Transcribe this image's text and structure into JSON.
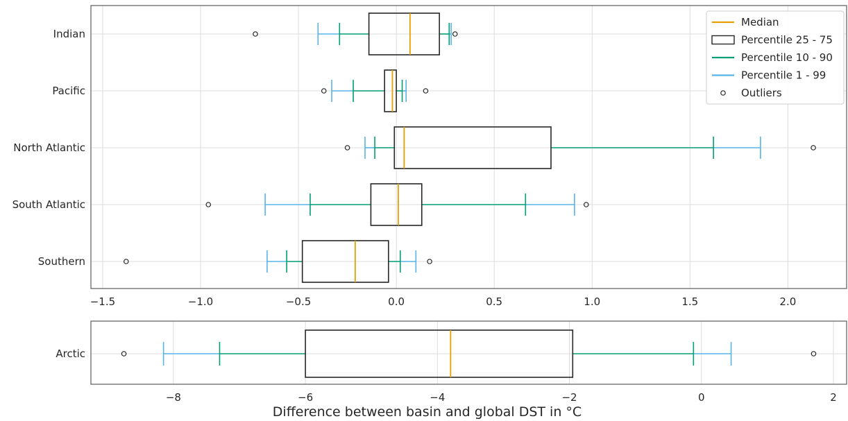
{
  "chart_data": [
    {
      "type": "boxplot",
      "orientation": "horizontal",
      "categories": [
        "Indian",
        "Pacific",
        "North Atlantic",
        "South Atlantic",
        "Southern"
      ],
      "xlim": [
        -1.56,
        2.3
      ],
      "xticks": [
        -1.5,
        -1.0,
        -0.5,
        0.0,
        0.5,
        1.0,
        1.5,
        2.0
      ],
      "xtick_labels": [
        "−1.5",
        "−1.0",
        "−0.5",
        "0.0",
        "0.5",
        "1.0",
        "1.5",
        "2.0"
      ],
      "grid": true,
      "boxes": [
        {
          "name": "Indian",
          "p1": -0.4,
          "p10": -0.29,
          "q1": -0.14,
          "median": 0.07,
          "q3": 0.22,
          "p90": 0.27,
          "p99": 0.28,
          "outliers": [
            -0.72,
            0.3
          ]
        },
        {
          "name": "Pacific",
          "p1": -0.33,
          "p10": -0.22,
          "q1": -0.06,
          "median": -0.02,
          "q3": 0.0,
          "p90": 0.03,
          "p99": 0.05,
          "outliers": [
            -0.37,
            0.15
          ]
        },
        {
          "name": "North Atlantic",
          "p1": -0.16,
          "p10": -0.11,
          "q1": -0.01,
          "median": 0.04,
          "q3": 0.79,
          "p90": 1.62,
          "p99": 1.86,
          "outliers": [
            -0.25,
            2.13
          ]
        },
        {
          "name": "South Atlantic",
          "p1": -0.67,
          "p10": -0.44,
          "q1": -0.13,
          "median": 0.01,
          "q3": 0.13,
          "p90": 0.66,
          "p99": 0.91,
          "outliers": [
            -0.96,
            0.97
          ]
        },
        {
          "name": "Southern",
          "p1": -0.66,
          "p10": -0.56,
          "q1": -0.48,
          "median": -0.21,
          "q3": -0.04,
          "p90": 0.02,
          "p99": 0.1,
          "outliers": [
            -1.38,
            0.17
          ]
        }
      ],
      "legend": {
        "placement": "top-right",
        "entries": [
          {
            "label": "Median",
            "kind": "line",
            "color": "#e69f00"
          },
          {
            "label": "Percentile 25 - 75",
            "kind": "box",
            "color": "#262626"
          },
          {
            "label": "Percentile 10 - 90",
            "kind": "line",
            "color": "#009e73"
          },
          {
            "label": "Percentile 1 - 99",
            "kind": "line",
            "color": "#56b4e9"
          },
          {
            "label": "Outliers",
            "kind": "marker",
            "color": "#262626"
          }
        ]
      }
    },
    {
      "type": "boxplot",
      "orientation": "horizontal",
      "categories": [
        "Arctic"
      ],
      "xlim": [
        -9.25,
        2.2
      ],
      "xticks": [
        -8,
        -6,
        -4,
        -2,
        0,
        2
      ],
      "xtick_labels": [
        "−8",
        "−6",
        "−4",
        "−2",
        "0",
        "2"
      ],
      "xlabel": "Difference between basin and global DST in °C",
      "grid": true,
      "boxes": [
        {
          "name": "Arctic",
          "p1": -8.15,
          "p10": -7.3,
          "q1": -6.0,
          "median": -3.8,
          "q3": -1.95,
          "p90": -0.12,
          "p99": 0.45,
          "outliers": [
            -8.75,
            1.7
          ]
        }
      ]
    }
  ],
  "colors": {
    "median": "#e69f00",
    "p10_90": "#009e73",
    "p1_99": "#56b4e9",
    "box": "#262626",
    "grid": "#dcdcdc",
    "axes": "#5a5a5a"
  }
}
